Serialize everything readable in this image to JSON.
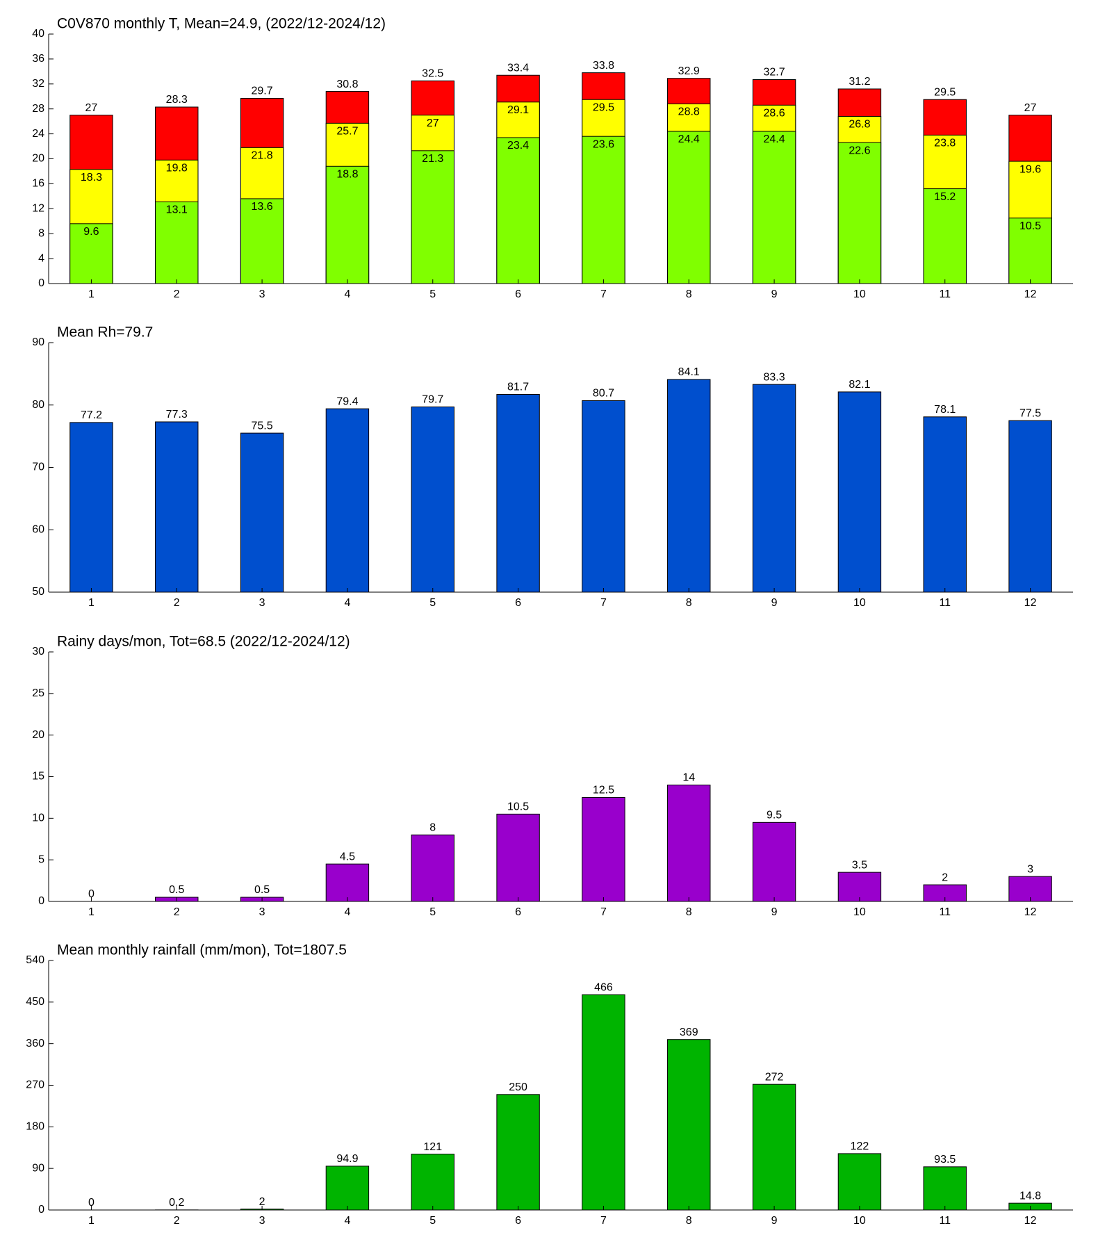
{
  "chart_data": [
    {
      "type": "bar",
      "title": "C0V870 monthly T, Mean=24.9, (2022/12-2024/12)",
      "categories": [
        1,
        2,
        3,
        4,
        5,
        6,
        7,
        8,
        9,
        10,
        11,
        12
      ],
      "series": [
        {
          "color": "#ff0000",
          "values": [
            27,
            28.3,
            29.7,
            30.8,
            32.5,
            33.4,
            33.8,
            32.9,
            32.7,
            31.2,
            29.5,
            27
          ]
        },
        {
          "color": "#ffff00",
          "values": [
            18.3,
            19.8,
            21.8,
            25.7,
            27,
            29.1,
            29.5,
            28.8,
            28.6,
            26.8,
            23.8,
            19.6
          ]
        },
        {
          "color": "#80ff00",
          "values": [
            9.6,
            13.1,
            13.6,
            18.8,
            21.3,
            23.4,
            23.6,
            24.4,
            24.4,
            22.6,
            15.2,
            10.5
          ]
        }
      ],
      "ylim": [
        0,
        40
      ],
      "yticks": [
        0,
        4,
        8,
        12,
        16,
        20,
        24,
        28,
        32,
        36,
        40
      ]
    },
    {
      "type": "bar",
      "title": "Mean Rh=79.7",
      "categories": [
        1,
        2,
        3,
        4,
        5,
        6,
        7,
        8,
        9,
        10,
        11,
        12
      ],
      "values": [
        77.2,
        77.3,
        75.5,
        79.4,
        79.7,
        81.7,
        80.7,
        84.1,
        83.3,
        82.1,
        78.1,
        77.5
      ],
      "color": "#004fce",
      "ylim": [
        50,
        90
      ],
      "yticks": [
        50,
        60,
        70,
        80,
        90
      ]
    },
    {
      "type": "bar",
      "title": "Rainy days/mon, Tot=68.5 (2022/12-2024/12)",
      "categories": [
        1,
        2,
        3,
        4,
        5,
        6,
        7,
        8,
        9,
        10,
        11,
        12
      ],
      "values": [
        0,
        0.5,
        0.5,
        4.5,
        8,
        10.5,
        12.5,
        14,
        9.5,
        3.5,
        2,
        3
      ],
      "color": "#9900cc",
      "ylim": [
        0,
        30
      ],
      "yticks": [
        0,
        5,
        10,
        15,
        20,
        25,
        30
      ]
    },
    {
      "type": "bar",
      "title": "Mean monthly rainfall (mm/mon), Tot=1807.5",
      "categories": [
        1,
        2,
        3,
        4,
        5,
        6,
        7,
        8,
        9,
        10,
        11,
        12
      ],
      "values": [
        0,
        0.2,
        2,
        94.9,
        121,
        250,
        466,
        369,
        272,
        122,
        93.5,
        14.8
      ],
      "color": "#00b400",
      "ylim": [
        0,
        540
      ],
      "yticks": [
        0,
        90,
        180,
        270,
        360,
        450,
        540
      ]
    }
  ]
}
